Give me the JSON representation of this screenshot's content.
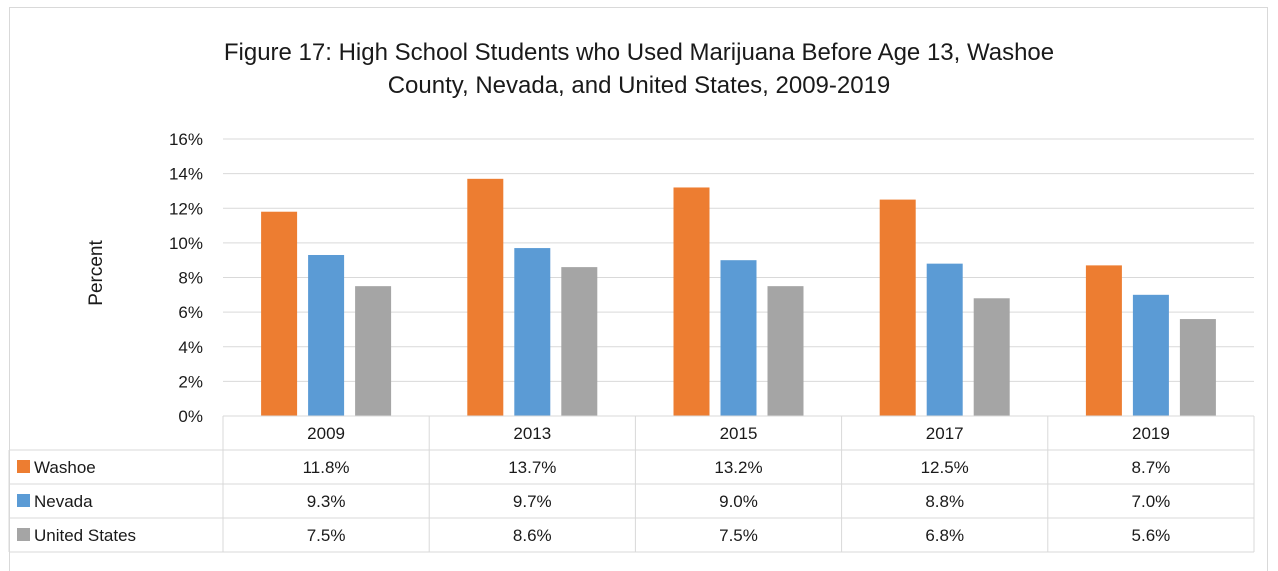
{
  "chart_data": {
    "type": "bar",
    "title": "Figure 17: High School Students who Used Marijuana Before Age 13, Washoe County, Nevada, and United States, 2009-2019",
    "title_lines": [
      "Figure 17: High School Students who Used Marijuana Before Age 13, Washoe",
      "County, Nevada, and United States, 2009-2019"
    ],
    "xlabel": "",
    "ylabel": "Percent",
    "categories": [
      "2009",
      "2013",
      "2015",
      "2017",
      "2019"
    ],
    "ylim": [
      0,
      16
    ],
    "yticks": [
      "0%",
      "2%",
      "4%",
      "6%",
      "8%",
      "10%",
      "12%",
      "14%",
      "16%"
    ],
    "grid": true,
    "legend": "data table below chart",
    "series": [
      {
        "name": "Washoe",
        "color": "#ed7d31",
        "values": [
          11.8,
          13.7,
          13.2,
          12.5,
          8.7
        ],
        "labels": [
          "11.8%",
          "13.7%",
          "13.2%",
          "12.5%",
          "8.7%"
        ]
      },
      {
        "name": "Nevada",
        "color": "#5b9bd5",
        "values": [
          9.3,
          9.7,
          9.0,
          8.8,
          7.0
        ],
        "labels": [
          "9.3%",
          "9.7%",
          "9.0%",
          "8.8%",
          "7.0%"
        ]
      },
      {
        "name": "United States",
        "color": "#a5a5a5",
        "values": [
          7.5,
          8.6,
          7.5,
          6.8,
          5.6
        ],
        "labels": [
          "7.5%",
          "8.6%",
          "7.5%",
          "6.8%",
          "5.6%"
        ]
      }
    ]
  }
}
